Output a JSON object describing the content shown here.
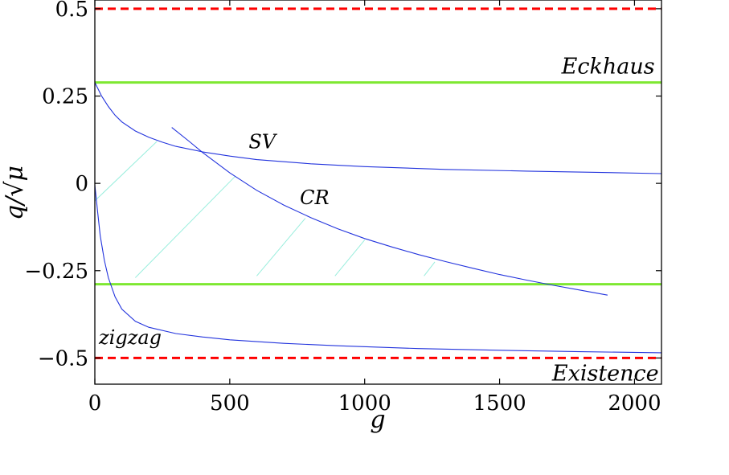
{
  "chart_data": {
    "type": "line",
    "title": "",
    "xlabel": "g",
    "ylabel": "q/√μ",
    "xlim": [
      0,
      2100
    ],
    "ylim": [
      -0.575,
      0.525
    ],
    "xticks": [
      0,
      500,
      1000,
      1500,
      2000
    ],
    "xtick_labels": [
      "0",
      "500",
      "1000",
      "1500",
      "2000"
    ],
    "yticks": [
      0.5,
      0.25,
      0,
      -0.25,
      -0.5
    ],
    "ytick_labels": [
      "0.5",
      "0.25",
      "0",
      "−0.25",
      "−0.5"
    ],
    "grid": false,
    "reference_lines": [
      {
        "y": 0.5,
        "style": "dashed",
        "color": "#ff0000"
      },
      {
        "y": 0.2887,
        "style": "solid",
        "color": "#7ee831"
      },
      {
        "y": -0.2887,
        "style": "solid",
        "color": "#7ee831"
      },
      {
        "y": -0.5,
        "style": "dashed",
        "color": "#ff0000"
      }
    ],
    "curves": [
      {
        "id": "SV",
        "color": "#2233dd",
        "x": [
          0,
          25,
          50,
          75,
          100,
          150,
          200,
          250,
          300,
          400,
          500,
          600,
          800,
          1000,
          1300,
          1600,
          1900,
          2100
        ],
        "y": [
          0.289,
          0.25,
          0.22,
          0.195,
          0.176,
          0.15,
          0.132,
          0.118,
          0.106,
          0.09,
          0.078,
          0.068,
          0.056,
          0.048,
          0.04,
          0.035,
          0.031,
          0.028
        ]
      },
      {
        "id": "CR",
        "color": "#2233dd",
        "x": [
          285,
          350,
          400,
          500,
          600,
          700,
          800,
          900,
          1000,
          1100,
          1200,
          1300,
          1400,
          1500,
          1600,
          1700,
          1800,
          1900
        ],
        "y": [
          0.16,
          0.12,
          0.088,
          0.03,
          -0.02,
          -0.062,
          -0.098,
          -0.13,
          -0.158,
          -0.182,
          -0.204,
          -0.224,
          -0.243,
          -0.261,
          -0.277,
          -0.292,
          -0.306,
          -0.32
        ]
      },
      {
        "id": "zigzag",
        "color": "#2233dd",
        "x": [
          0,
          10,
          20,
          35,
          50,
          75,
          100,
          150,
          200,
          300,
          400,
          500,
          700,
          900,
          1200,
          1500,
          1800,
          2100
        ],
        "y": [
          -0.005,
          -0.08,
          -0.15,
          -0.22,
          -0.27,
          -0.325,
          -0.36,
          -0.395,
          -0.412,
          -0.43,
          -0.44,
          -0.448,
          -0.458,
          -0.465,
          -0.473,
          -0.478,
          -0.482,
          -0.485
        ]
      }
    ],
    "hatch_lines": {
      "color": "#99eedd",
      "segments": [
        [
          [
            0,
            -0.05
          ],
          [
            230,
            0.12
          ]
        ],
        [
          [
            150,
            -0.27
          ],
          [
            520,
            0.02
          ]
        ],
        [
          [
            600,
            -0.265
          ],
          [
            780,
            -0.1
          ]
        ],
        [
          [
            890,
            -0.265
          ],
          [
            1000,
            -0.162
          ]
        ],
        [
          [
            1220,
            -0.265
          ],
          [
            1260,
            -0.225
          ]
        ]
      ]
    },
    "annotations": [
      {
        "text": "SV",
        "x": 570,
        "y": 0.1
      },
      {
        "text": "CR",
        "x": 760,
        "y": -0.06
      },
      {
        "text": "Eckhaus",
        "x": 2075,
        "y": 0.315
      },
      {
        "text": "zigzag",
        "x": 15,
        "y": -0.46
      },
      {
        "text": "Existence",
        "x": 2090,
        "y": -0.565
      }
    ]
  }
}
